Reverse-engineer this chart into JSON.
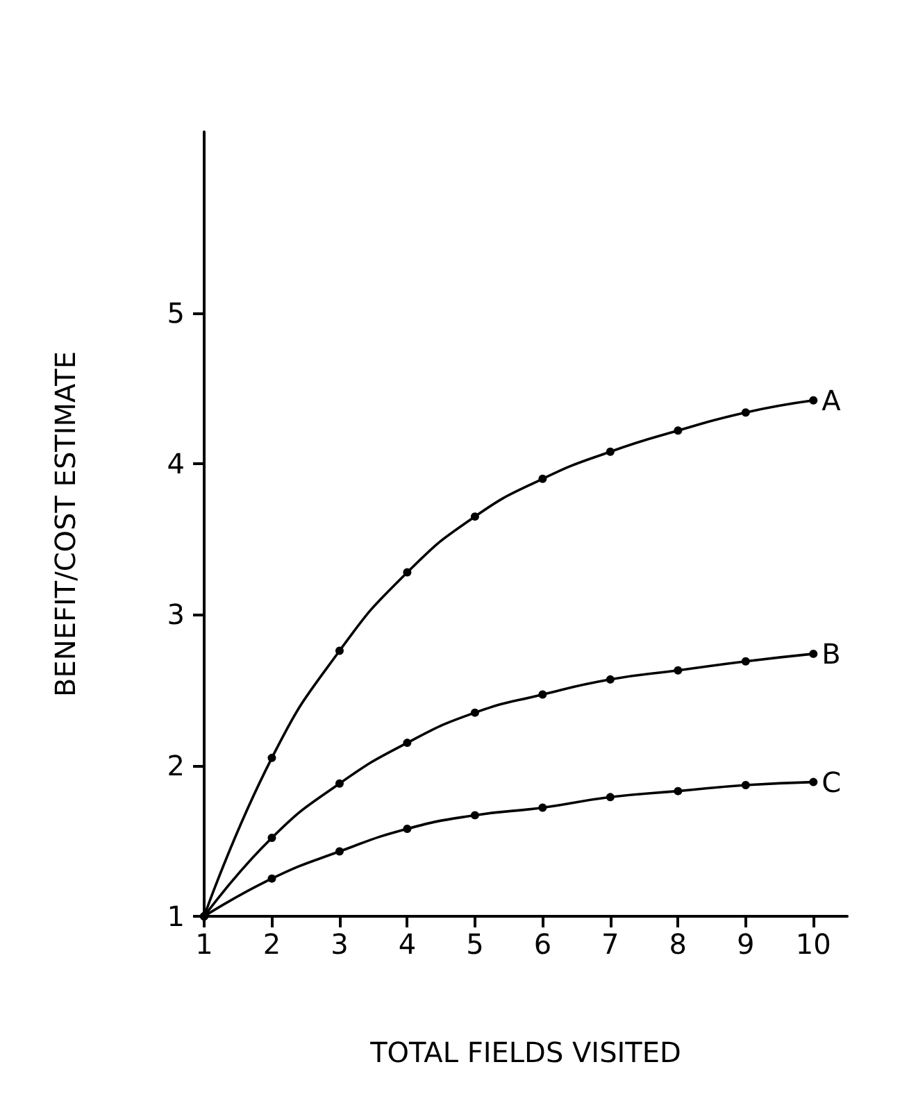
{
  "chart_data": {
    "type": "line",
    "xlabel": "TOTAL FIELDS VISITED",
    "ylabel": "BENEFIT/COST ESTIMATE",
    "x": [
      1,
      2,
      3,
      4,
      5,
      6,
      7,
      8,
      9,
      10
    ],
    "series": [
      {
        "name": "A",
        "color": "#000000",
        "values": [
          1,
          2.05,
          2.76,
          3.28,
          3.65,
          3.9,
          4.08,
          4.22,
          4.34,
          4.42
        ]
      },
      {
        "name": "B",
        "color": "#000000",
        "values": [
          1,
          1.52,
          1.88,
          2.15,
          2.35,
          2.47,
          2.57,
          2.63,
          2.69,
          2.74
        ]
      },
      {
        "name": "C",
        "color": "#000000",
        "values": [
          1,
          1.25,
          1.43,
          1.58,
          1.67,
          1.72,
          1.79,
          1.83,
          1.87,
          1.89
        ]
      }
    ],
    "xlim": [
      1,
      10.5
    ],
    "xticks": [
      1,
      2,
      3,
      4,
      5,
      6,
      7,
      8,
      9,
      10
    ],
    "ylim": [
      1,
      6.2
    ],
    "yticks": [
      1,
      2,
      3,
      4,
      5
    ],
    "grid": false,
    "marker": "circle",
    "line_style": "solid"
  }
}
